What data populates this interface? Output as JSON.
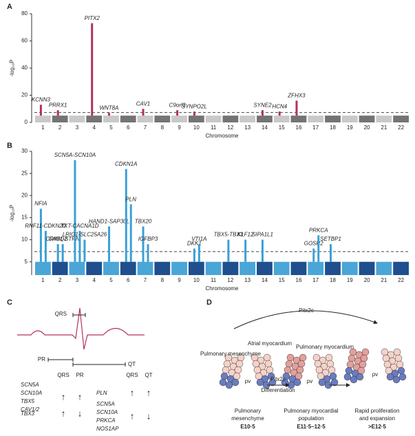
{
  "chart_data": [
    {
      "type": "manhattan",
      "panel": "A",
      "y_label": "-log₁₀P",
      "x_label": "Chromosome",
      "categories": [
        "1",
        "2",
        "3",
        "4",
        "5",
        "6",
        "7",
        "8",
        "9",
        "10",
        "11",
        "12",
        "13",
        "14",
        "15",
        "16",
        "17",
        "18",
        "19",
        "20",
        "21",
        "22"
      ],
      "background": [
        5,
        5,
        5,
        5,
        5,
        5,
        5,
        5,
        5,
        5,
        5,
        5,
        5,
        5,
        5,
        5,
        5,
        5,
        5,
        5,
        5,
        5
      ],
      "colors": [
        "#c9c9c9",
        "#747474"
      ],
      "hit_color": "#b3305c",
      "ylim": [
        0,
        80
      ],
      "yticks": [
        0,
        20,
        40,
        60,
        80
      ],
      "threshold": 7.3,
      "peaks": [
        {
          "label": "KCNN3",
          "category": "1",
          "value": 13
        },
        {
          "label": "PRRX1",
          "category": "2",
          "value": 9
        },
        {
          "label": "PITX2",
          "category": "4",
          "value": 73
        },
        {
          "label": "WNT8A",
          "category": "5",
          "value": 7
        },
        {
          "label": "CAV1",
          "category": "7",
          "value": 10
        },
        {
          "label": "C9orf3",
          "category": "9",
          "value": 9
        },
        {
          "label": "SYNPO2L",
          "category": "10",
          "value": 8
        },
        {
          "label": "SYNE2",
          "category": "14",
          "value": 9
        },
        {
          "label": "HCN4",
          "category": "15",
          "value": 8
        },
        {
          "label": "ZFHX3",
          "category": "16",
          "value": 16
        }
      ]
    },
    {
      "type": "manhattan",
      "panel": "B",
      "y_label": "-log₁₀P",
      "x_label": "Chromosome",
      "categories": [
        "1",
        "2",
        "3",
        "4",
        "5",
        "6",
        "7",
        "8",
        "9",
        "10",
        "11",
        "12",
        "13",
        "14",
        "15",
        "16",
        "17",
        "18",
        "19",
        "20",
        "21",
        "22"
      ],
      "background": [
        5,
        5,
        5,
        5,
        5,
        5,
        5,
        5,
        5,
        5,
        5,
        5,
        5,
        5,
        5,
        5,
        5,
        5,
        5,
        5,
        5,
        5
      ],
      "colors": [
        "#4aa6d6",
        "#1f4f8c"
      ],
      "hit_color": "#3aa0d6",
      "ylim": [
        2,
        30
      ],
      "yticks": [
        5,
        10,
        15,
        20,
        25,
        30
      ],
      "threshold": 7.3,
      "peaks": [
        {
          "label": "NFIA",
          "category": "1",
          "value": 17
        },
        {
          "label": "RNF11-CDKN2C",
          "category": "1",
          "value": 12
        },
        {
          "label": "CASQ2",
          "category": "2",
          "value": 9
        },
        {
          "label": "CRIM1-STRN",
          "category": "2",
          "value": 9
        },
        {
          "label": "SCN5A-SCN10A",
          "category": "3",
          "value": 28
        },
        {
          "label": "TKT-CACNA1D",
          "category": "3",
          "value": 12
        },
        {
          "label": "LRIG1-SLC25A26",
          "category": "3",
          "value": 10
        },
        {
          "label": "HAND1-SAP30L",
          "category": "5",
          "value": 13
        },
        {
          "label": "CDKN1A",
          "category": "6",
          "value": 26
        },
        {
          "label": "PLN",
          "category": "6",
          "value": 18
        },
        {
          "label": "TBX20",
          "category": "7",
          "value": 13
        },
        {
          "label": "IGFBP3",
          "category": "7",
          "value": 9
        },
        {
          "label": "DKK1",
          "category": "10",
          "value": 8
        },
        {
          "label": "VTI1A",
          "category": "10",
          "value": 9
        },
        {
          "label": "TBX5-TBX3",
          "category": "12",
          "value": 10
        },
        {
          "label": "KLF12",
          "category": "13",
          "value": 10
        },
        {
          "label": "SIPA1L1",
          "category": "14",
          "value": 10
        },
        {
          "label": "GOSR2",
          "category": "17",
          "value": 8
        },
        {
          "label": "PRKCA",
          "category": "17",
          "value": 11
        },
        {
          "label": "SETBP1",
          "category": "18",
          "value": 9
        }
      ]
    }
  ],
  "panel_c": {
    "label": "C",
    "ecg_labels": [
      "QRS",
      "PR",
      "QT"
    ],
    "left": {
      "headers": [
        "QRS",
        "PR"
      ],
      "groups": [
        {
          "genes": [
            "SCN5A",
            "SCN10A",
            "TBX5",
            "CAV1/2"
          ],
          "effects": [
            "↑",
            "↑"
          ]
        },
        {
          "genes": [
            "TBX3"
          ],
          "effects": [
            "↑",
            "↓"
          ]
        }
      ]
    },
    "right": {
      "headers": [
        "QRS",
        "QT"
      ],
      "groups": [
        {
          "genes": [
            "PLN"
          ],
          "effects": [
            "↑",
            "↑"
          ]
        },
        {
          "genes": [
            "SCN5A",
            "SCN10A",
            "PRKCA",
            "NOS1AP"
          ],
          "effects": [
            "↑",
            "↓"
          ]
        }
      ]
    }
  },
  "panel_d": {
    "label": "D",
    "top_arrow": "Pitx2c",
    "labels": [
      "Pulmonary mesenchyme",
      "Atrial myocardium",
      "Pulmonary myocardium"
    ],
    "pv": [
      "pv",
      "pv",
      "pv"
    ],
    "transition": [
      "Pitx2c",
      "Differentiation"
    ],
    "stages": [
      {
        "caption": [
          "Pulmonary",
          "mesenchyme"
        ],
        "time": "E10·5"
      },
      {
        "caption": [
          "Pulmonary myocardial",
          "population"
        ],
        "time": "E11·5–12·5"
      },
      {
        "caption": [
          "Rapid proliferation",
          "and expansion"
        ],
        "time": ">E12·5"
      }
    ]
  }
}
